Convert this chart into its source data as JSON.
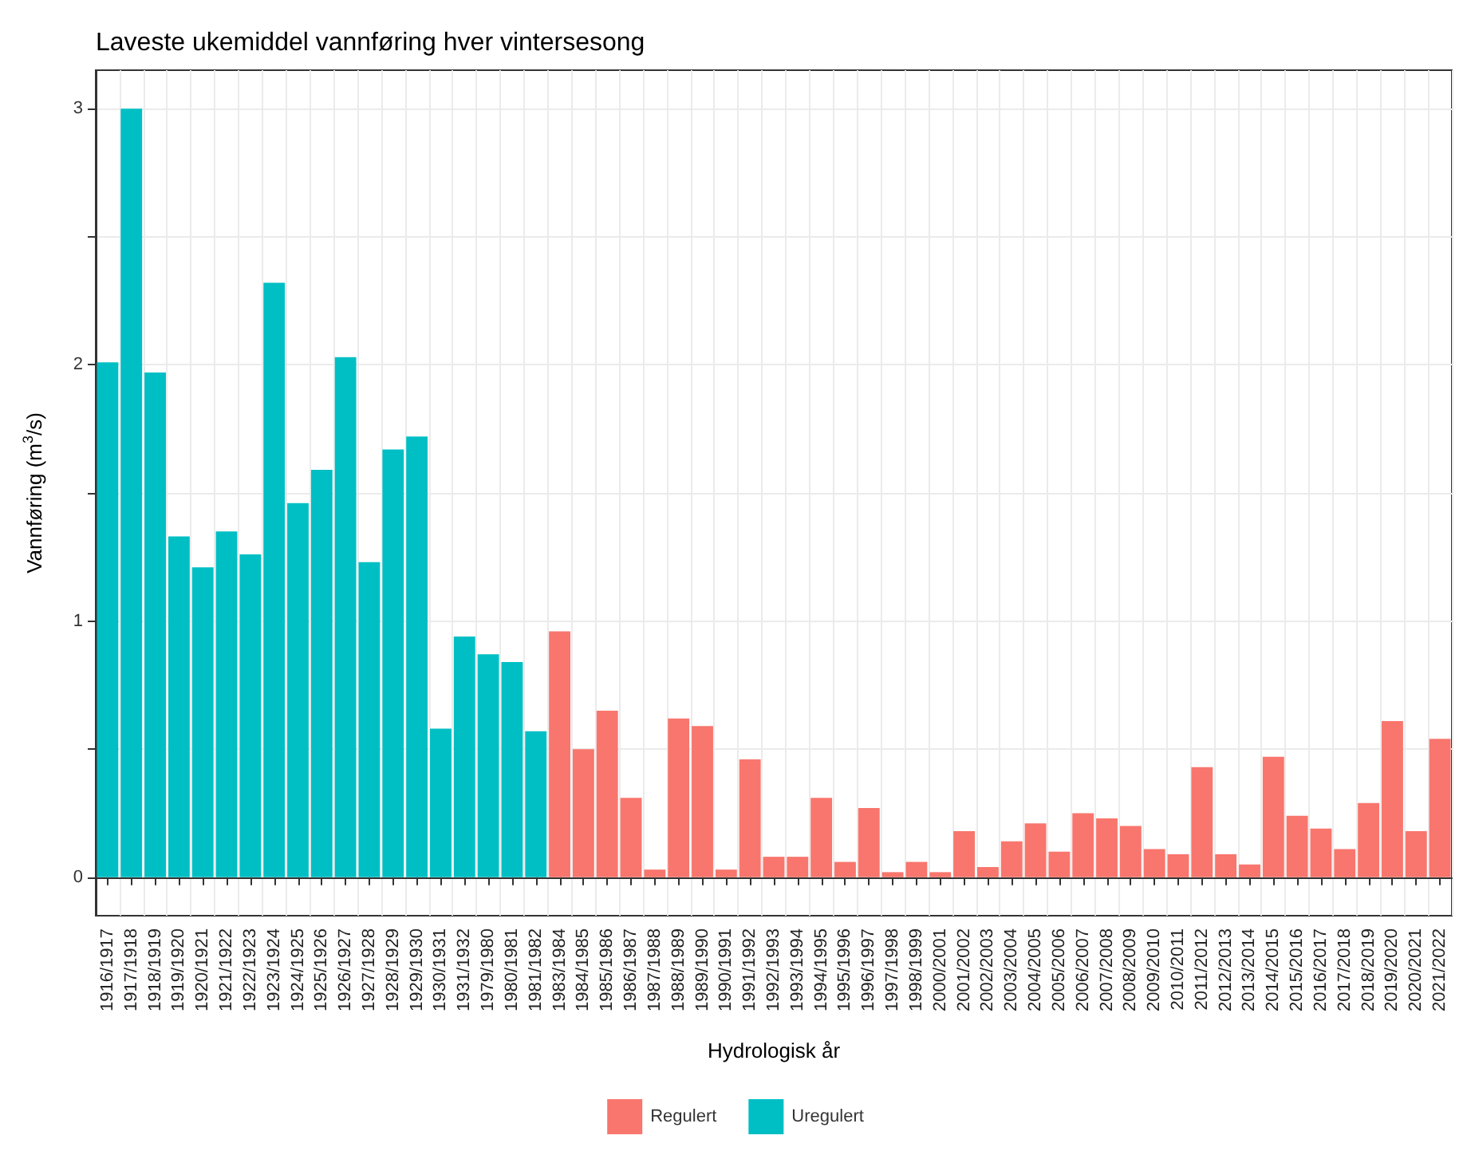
{
  "chart_data": {
    "type": "bar",
    "title": "Laveste ukemiddel vannføring hver vintersesong",
    "xlabel": "Hydrologisk år",
    "ylabel": "Vannføring (m$^{3}$/s)",
    "categories": [
      "1916/1917",
      "1917/1918",
      "1918/1919",
      "1919/1920",
      "1920/1921",
      "1921/1922",
      "1922/1923",
      "1923/1924",
      "1924/1925",
      "1925/1926",
      "1926/1927",
      "1927/1928",
      "1928/1929",
      "1929/1930",
      "1930/1931",
      "1931/1932",
      "1979/1980",
      "1980/1981",
      "1981/1982",
      "1983/1984",
      "1984/1985",
      "1985/1986",
      "1986/1987",
      "1987/1988",
      "1988/1989",
      "1989/1990",
      "1990/1991",
      "1991/1992",
      "1992/1993",
      "1993/1994",
      "1994/1995",
      "1995/1996",
      "1996/1997",
      "1997/1998",
      "1998/1999",
      "2000/2001",
      "2001/2002",
      "2002/2003",
      "2003/2004",
      "2004/2005",
      "2005/2006",
      "2006/2007",
      "2007/2008",
      "2008/2009",
      "2009/2010",
      "2010/2011",
      "2011/2012",
      "2012/2013",
      "2013/2014",
      "2014/2015",
      "2015/2016",
      "2016/2017",
      "2017/2018",
      "2018/2019",
      "2019/2020",
      "2020/2021",
      "2021/2022"
    ],
    "series": [
      {
        "name": "Regulert",
        "color": "#f8766d",
        "values": [
          null,
          null,
          null,
          null,
          null,
          null,
          null,
          null,
          null,
          null,
          null,
          null,
          null,
          null,
          null,
          null,
          null,
          null,
          null,
          0.96,
          0.5,
          0.65,
          0.31,
          0.03,
          0.62,
          0.59,
          0.03,
          0.46,
          0.08,
          0.08,
          0.31,
          0.06,
          0.27,
          0.02,
          0.06,
          0.02,
          0.18,
          0.04,
          0.14,
          0.21,
          0.1,
          0.25,
          0.23,
          0.2,
          0.11,
          0.09,
          0.43,
          0.09,
          0.05,
          0.47,
          0.24,
          0.19,
          0.11,
          0.29,
          0.61,
          0.18,
          0.54
        ]
      },
      {
        "name": "Uregulert",
        "color": "#00bfc4",
        "values": [
          2.01,
          3.0,
          1.97,
          1.33,
          1.21,
          1.35,
          1.26,
          2.32,
          1.46,
          1.59,
          2.03,
          1.23,
          1.67,
          1.72,
          0.58,
          0.94,
          0.87,
          0.84,
          0.57,
          null,
          null,
          null,
          null,
          null,
          null,
          null,
          null,
          null,
          null,
          null,
          null,
          null,
          null,
          null,
          null,
          null,
          null,
          null,
          null,
          null,
          null,
          null,
          null,
          null,
          null,
          null,
          null,
          null,
          null,
          null,
          null,
          null,
          null,
          null,
          null,
          null,
          null
        ]
      }
    ],
    "ylim": [
      -0.15,
      3.15
    ],
    "yticks": [
      0,
      {
        "value": 0.5,
        "label": null
      },
      1,
      {
        "value": 1.5,
        "label": null
      },
      2,
      {
        "value": 2.5,
        "label": null
      },
      3
    ],
    "grid": true,
    "legend": "bottom"
  }
}
